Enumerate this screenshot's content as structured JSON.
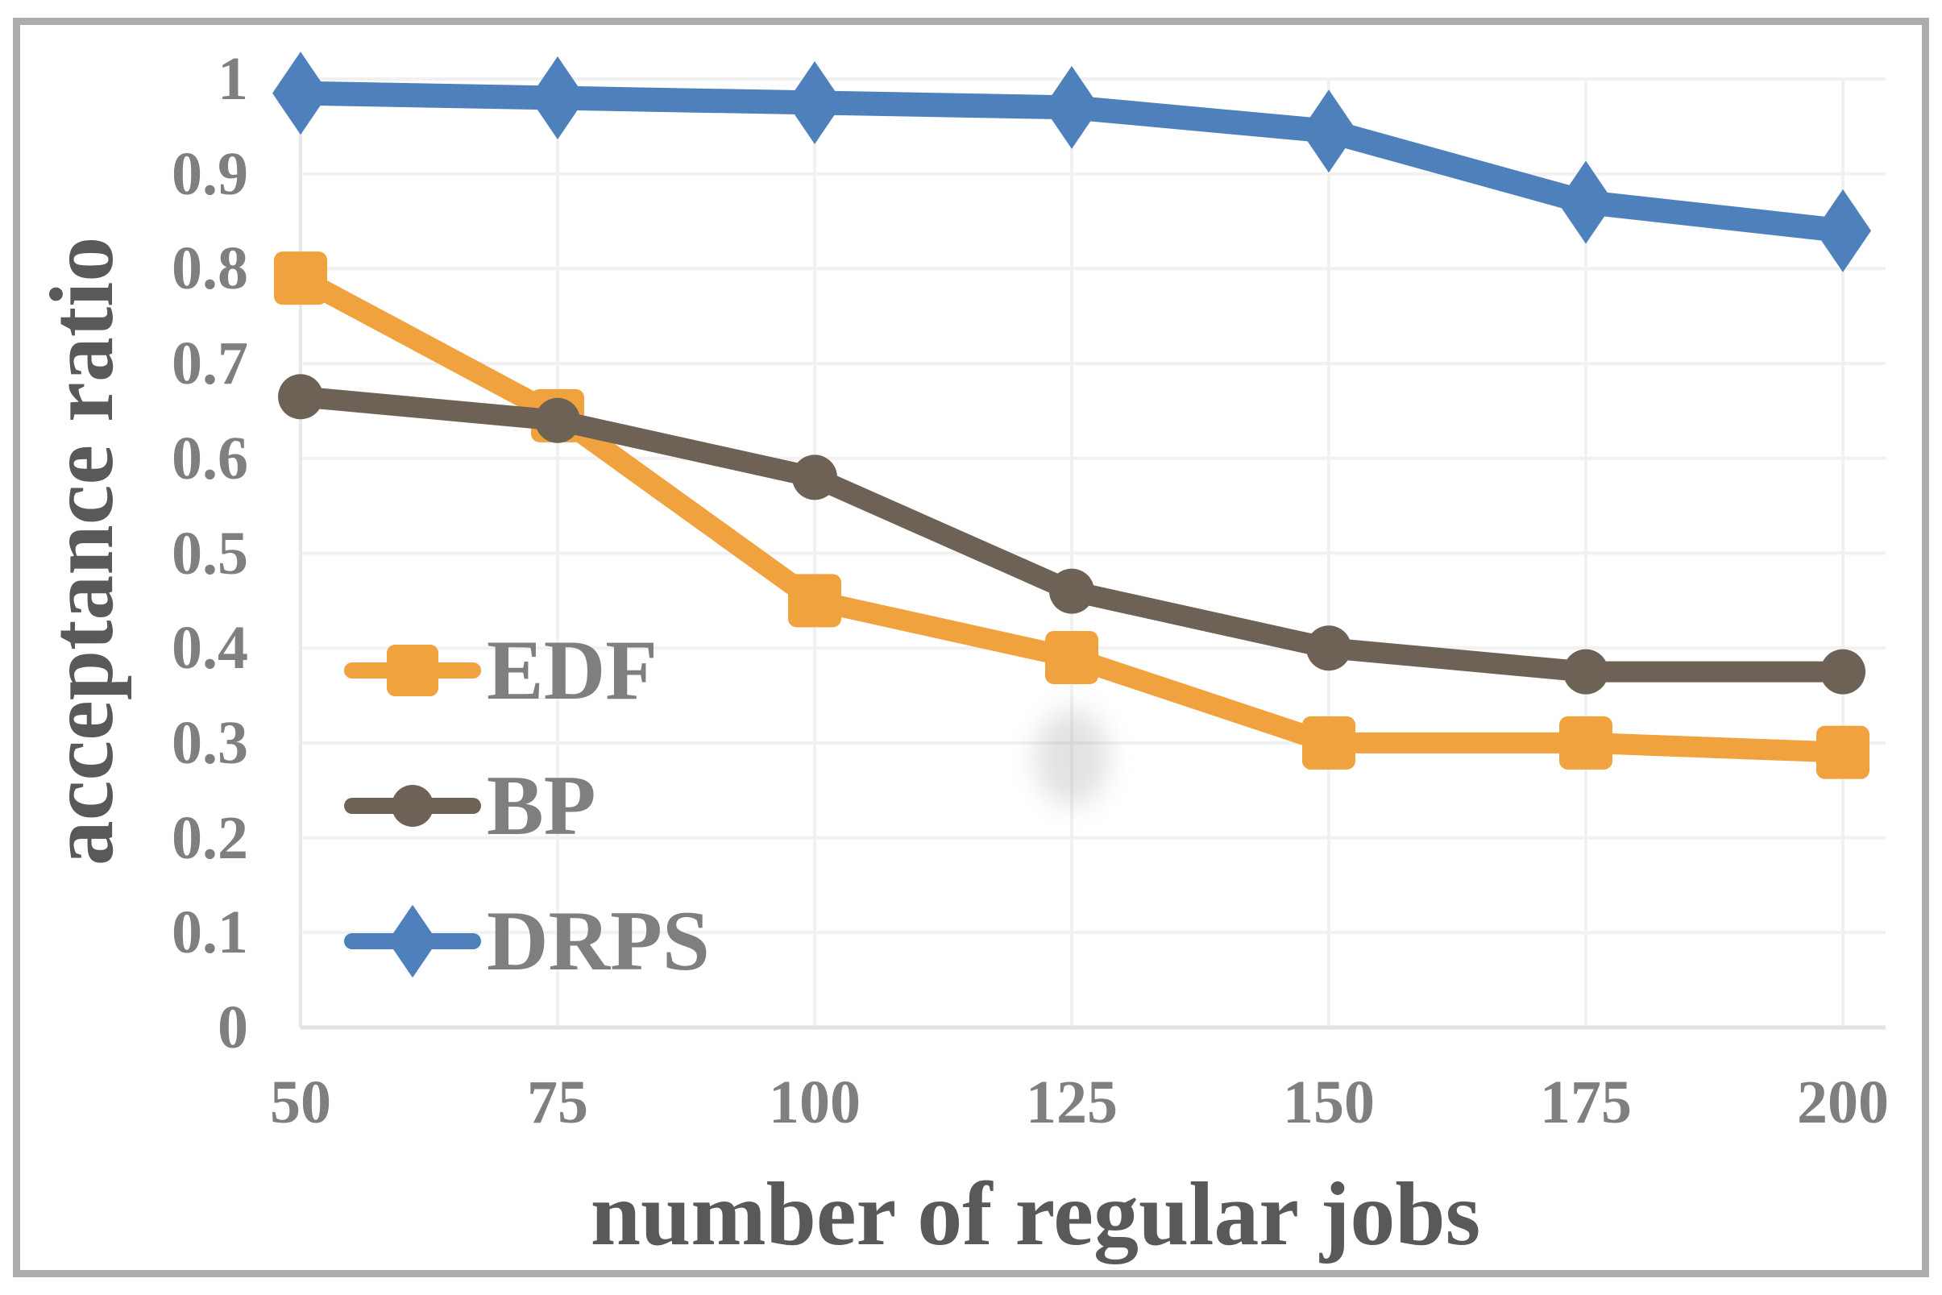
{
  "chart_data": {
    "type": "line",
    "title": "",
    "xlabel": "number of regular jobs",
    "ylabel": "acceptance ratio",
    "x": [
      50,
      75,
      100,
      125,
      150,
      175,
      200
    ],
    "x_tick_labels": [
      "50",
      "75",
      "100",
      "125",
      "150",
      "175",
      "200"
    ],
    "y_tick_labels": [
      "0",
      "0.1",
      "0.2",
      "0.3",
      "0.4",
      "0.5",
      "0.6",
      "0.7",
      "0.8",
      "0.9",
      "1"
    ],
    "ylim": [
      0,
      1
    ],
    "y_tick_step": 0.1,
    "grid": true,
    "legend_position": "inside-left-middle",
    "series": [
      {
        "name": "EDF",
        "color": "#F0A23E",
        "marker": "square",
        "values": [
          0.79,
          0.645,
          0.45,
          0.39,
          0.3,
          0.3,
          0.29
        ]
      },
      {
        "name": "BP",
        "color": "#6E6256",
        "marker": "circle",
        "values": [
          0.665,
          0.64,
          0.58,
          0.46,
          0.4,
          0.375,
          0.375
        ]
      },
      {
        "name": "DRPS",
        "color": "#4E80BC",
        "marker": "diamond",
        "values": [
          0.985,
          0.98,
          0.975,
          0.97,
          0.945,
          0.87,
          0.84
        ]
      }
    ]
  },
  "styles": {
    "gridline_color": "#F1F1F1",
    "axis_line_color": "#E8E8E8",
    "baseline_color": "#E2E2E2",
    "tick_label_color": "#7F7F7F",
    "axis_title_color": "#595959",
    "legend_text_color": "#7F7F7F",
    "border_color": "#ACACAC",
    "background_color": "#FFFFFF",
    "smudge_color": "#9A9A9A"
  }
}
